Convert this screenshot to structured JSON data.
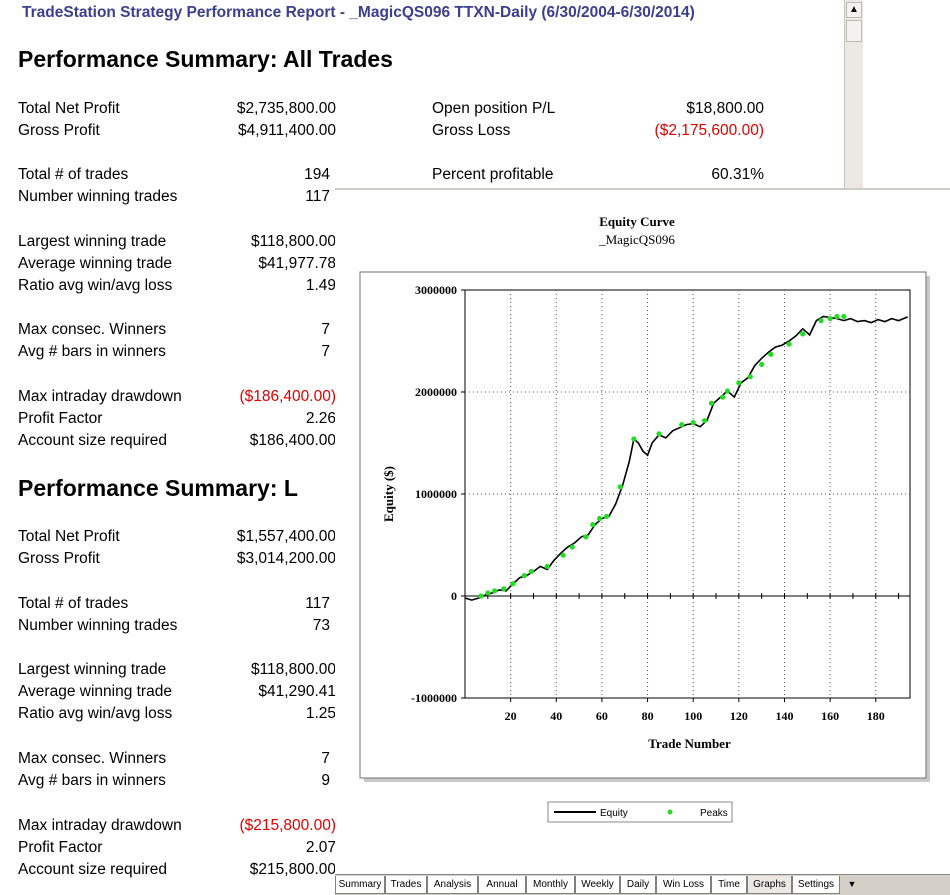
{
  "report": {
    "title": "TradeStation  Strategy Performance Report - _MagicQS096 TTXN-Daily (6/30/2004-6/30/2014)",
    "section_all": {
      "heading": "Performance Summary:  All Trades",
      "total_net_profit_label": "Total Net Profit",
      "total_net_profit": "$2,735,800.00",
      "open_pl_label": "Open position P/L",
      "open_pl": "$18,800.00",
      "gross_profit_label": "Gross Profit",
      "gross_profit": "$4,911,400.00",
      "gross_loss_label": "Gross Loss",
      "gross_loss": "($2,175,600.00)",
      "total_trades_label": "Total # of trades",
      "total_trades": "194",
      "pct_profitable_label": "Percent profitable",
      "pct_profitable": "60.31%",
      "num_winning_label": "Number winning trades",
      "num_winning": "117",
      "largest_win_label": "Largest winning trade",
      "largest_win": "$118,800.00",
      "avg_win_label": "Average winning trade",
      "avg_win": "$41,977.78",
      "ratio_label": "Ratio avg win/avg loss",
      "ratio": "1.49",
      "max_consec_label": "Max consec. Winners",
      "max_consec": "7",
      "avg_bars_label": "Avg # bars in winners",
      "avg_bars": "7",
      "max_dd_label": "Max intraday drawdown",
      "max_dd": "($186,400.00)",
      "profit_factor_label": "Profit Factor",
      "profit_factor": "2.26",
      "account_size_label": "Account size required",
      "account_size": "$186,400.00"
    },
    "section_long": {
      "heading": "Performance Summary:  L",
      "total_net_profit_label": "Total Net Profit",
      "total_net_profit": "$1,557,400.00",
      "gross_profit_label": "Gross Profit",
      "gross_profit": "$3,014,200.00",
      "total_trades_label": "Total # of trades",
      "total_trades": "117",
      "num_winning_label": "Number winning trades",
      "num_winning": "73",
      "largest_win_label": "Largest winning trade",
      "largest_win": "$118,800.00",
      "avg_win_label": "Average winning trade",
      "avg_win": "$41,290.41",
      "ratio_label": "Ratio avg win/avg loss",
      "ratio": "1.25",
      "max_consec_label": "Max consec. Winners",
      "max_consec": "7",
      "avg_bars_label": "Avg # bars in winners",
      "avg_bars": "9",
      "max_dd_label": "Max intraday drawdown",
      "max_dd": "($215,800.00)",
      "profit_factor_label": "Profit Factor",
      "profit_factor": "2.07",
      "account_size_label": "Account size required",
      "account_size": "$215,800.00"
    }
  },
  "colors": {
    "title": "#3a3f8f",
    "negative": "#e00000",
    "equity_line": "#000000",
    "peaks": "#22dd22"
  },
  "chart_data": {
    "type": "line",
    "title": "Equity Curve",
    "subtitle": "_MagicQS096",
    "xlabel": "Trade Number",
    "ylabel": "Equity ($)",
    "xlim": [
      0,
      195
    ],
    "ylim": [
      -1000000,
      3000000
    ],
    "x_ticks": [
      20,
      40,
      60,
      80,
      100,
      120,
      140,
      160,
      180
    ],
    "x_tick_labels": [
      "20",
      "40",
      "60",
      "80",
      "100",
      "120",
      "140",
      "160",
      "180"
    ],
    "y_ticks": [
      -1000000,
      0,
      1000000,
      2000000,
      3000000
    ],
    "y_tick_labels": [
      "-1000000",
      "0",
      "1000000",
      "2000000",
      "3000000"
    ],
    "grid": true,
    "legend": {
      "position": "bottom",
      "entries": [
        "Equity",
        "Peaks"
      ]
    },
    "series": [
      {
        "name": "Equity",
        "x": [
          0,
          3,
          6,
          9,
          12,
          15,
          18,
          21,
          24,
          27,
          30,
          33,
          36,
          39,
          42,
          45,
          48,
          51,
          54,
          57,
          60,
          63,
          66,
          69,
          72,
          74,
          76,
          78,
          80,
          82,
          85,
          88,
          91,
          94,
          97,
          100,
          103,
          106,
          109,
          112,
          115,
          118,
          121,
          124,
          127,
          130,
          133,
          136,
          139,
          142,
          145,
          148,
          151,
          154,
          157,
          160,
          163,
          166,
          169,
          172,
          175,
          178,
          181,
          184,
          187,
          190,
          194
        ],
        "values": [
          -20000,
          -40000,
          -20000,
          10000,
          30000,
          60000,
          50000,
          120000,
          180000,
          200000,
          240000,
          290000,
          260000,
          350000,
          420000,
          480000,
          520000,
          580000,
          600000,
          700000,
          760000,
          780000,
          900000,
          1080000,
          1320000,
          1540000,
          1500000,
          1420000,
          1380000,
          1500000,
          1580000,
          1550000,
          1620000,
          1650000,
          1680000,
          1690000,
          1660000,
          1720000,
          1890000,
          1950000,
          2010000,
          1950000,
          2090000,
          2140000,
          2260000,
          2330000,
          2390000,
          2440000,
          2460000,
          2500000,
          2550000,
          2620000,
          2560000,
          2700000,
          2740000,
          2730000,
          2720000,
          2700000,
          2720000,
          2690000,
          2700000,
          2680000,
          2710000,
          2690000,
          2720000,
          2700000,
          2735800
        ]
      },
      {
        "name": "Peaks",
        "x": [
          7,
          10,
          13,
          17,
          21,
          26,
          29,
          36,
          43,
          47,
          53,
          56,
          59,
          62,
          68,
          74,
          85,
          95,
          100,
          105,
          108,
          113,
          115,
          120,
          125,
          130,
          134,
          142,
          148,
          156,
          160,
          163,
          166
        ],
        "values": [
          0,
          30000,
          50000,
          70000,
          120000,
          200000,
          240000,
          290000,
          400000,
          480000,
          580000,
          700000,
          760000,
          780000,
          1070000,
          1540000,
          1590000,
          1680000,
          1700000,
          1720000,
          1890000,
          1950000,
          2010000,
          2090000,
          2150000,
          2270000,
          2370000,
          2470000,
          2570000,
          2700000,
          2720000,
          2740000,
          2740000
        ]
      }
    ]
  },
  "tabs": [
    "Summary",
    "Trades",
    "Analysis",
    "Annual",
    "Monthly",
    "Weekly",
    "Daily",
    "Win Loss",
    "Time",
    "Graphs",
    "Settings"
  ],
  "active_tab": "Graphs",
  "scroll": {
    "up_arrow": "▲",
    "down_arrow": "▼"
  }
}
